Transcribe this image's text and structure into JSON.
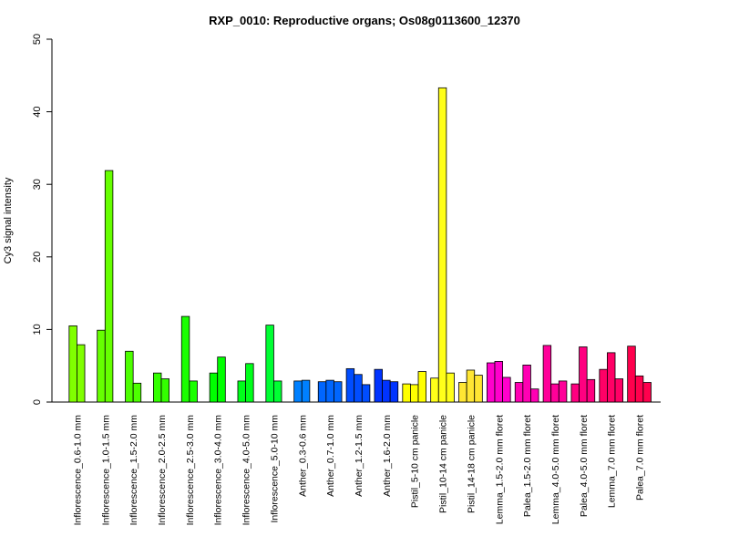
{
  "chart_data": {
    "type": "bar",
    "title": "RXP_0010: Reproductive organs; Os08g0113600_12370",
    "ylabel": "Cy3 signal intensity",
    "xlabel": "",
    "ylim": [
      0,
      50
    ],
    "yticks": [
      0,
      10,
      20,
      30,
      40,
      50
    ],
    "grid": false,
    "legend": "none",
    "categories": [
      "Inflorescence_0.6-1.0 mm",
      "Inflorescence_1.0-1.5 mm",
      "Inflorescence_1.5-2.0 mm",
      "Inflorescence_2.0-2.5 mm",
      "Inflorescence_2.5-3.0 mm",
      "Inflorescence_3.0-4.0 mm",
      "Inflorescence_4.0-5.0 mm",
      "Inflorescence_5.0-10 mm",
      "Anther_0.3-0.6 mm",
      "Anther_0.7-1.0 mm",
      "Anther_1.2-1.5 mm",
      "Anther_1.6-2.0 mm",
      "Pistil_5-10 cm panicle",
      "Pistil_10-14 cm panicle",
      "Pistil_14-18 cm panicle",
      "Lemma_1.5-2.0 mm floret",
      "Palea_1.5-2.0 mm floret",
      "Lemma_4.0-5.0 mm floret",
      "Palea_4.0-5.0 mm floret",
      "Lemma_7.0 mm floret",
      "Palea_7.0 mm floret"
    ],
    "groups": [
      {
        "values": [
          10.5,
          7.9
        ],
        "color": "#80ff00"
      },
      {
        "values": [
          9.9,
          31.9
        ],
        "color": "#66ff00"
      },
      {
        "values": [
          7.0,
          2.6
        ],
        "color": "#4dff00"
      },
      {
        "values": [
          4.0,
          3.2
        ],
        "color": "#33ff00"
      },
      {
        "values": [
          11.8,
          2.9
        ],
        "color": "#1aff00"
      },
      {
        "values": [
          4.0,
          6.2
        ],
        "color": "#00ff00"
      },
      {
        "values": [
          2.9,
          5.3
        ],
        "color": "#00ff1a"
      },
      {
        "values": [
          10.6,
          2.9
        ],
        "color": "#00ff33"
      },
      {
        "values": [
          2.9,
          3.0
        ],
        "color": "#0080ff"
      },
      {
        "values": [
          2.8,
          3.0,
          2.8
        ],
        "color": "#0066ff"
      },
      {
        "values": [
          4.6,
          3.8,
          2.4
        ],
        "color": "#004dff"
      },
      {
        "values": [
          4.5,
          3.0,
          2.8
        ],
        "color": "#0033ff"
      },
      {
        "values": [
          2.5,
          2.4,
          4.2
        ],
        "color": "#ffff00"
      },
      {
        "values": [
          3.3,
          43.3,
          4.0
        ],
        "color": "#ffff1a"
      },
      {
        "values": [
          2.7,
          4.4,
          3.7
        ],
        "color": "#ffe633"
      },
      {
        "values": [
          5.4,
          5.6,
          3.4
        ],
        "color": "#ff00cc"
      },
      {
        "values": [
          2.7,
          5.1,
          1.8
        ],
        "color": "#ff00b3"
      },
      {
        "values": [
          7.8,
          2.5,
          2.9
        ],
        "color": "#ff0099"
      },
      {
        "values": [
          2.5,
          7.6,
          3.1
        ],
        "color": "#ff0080"
      },
      {
        "values": [
          4.5,
          6.8,
          3.2
        ],
        "color": "#ff0066"
      },
      {
        "values": [
          7.7,
          3.6,
          2.7
        ],
        "color": "#ff004d"
      }
    ]
  }
}
